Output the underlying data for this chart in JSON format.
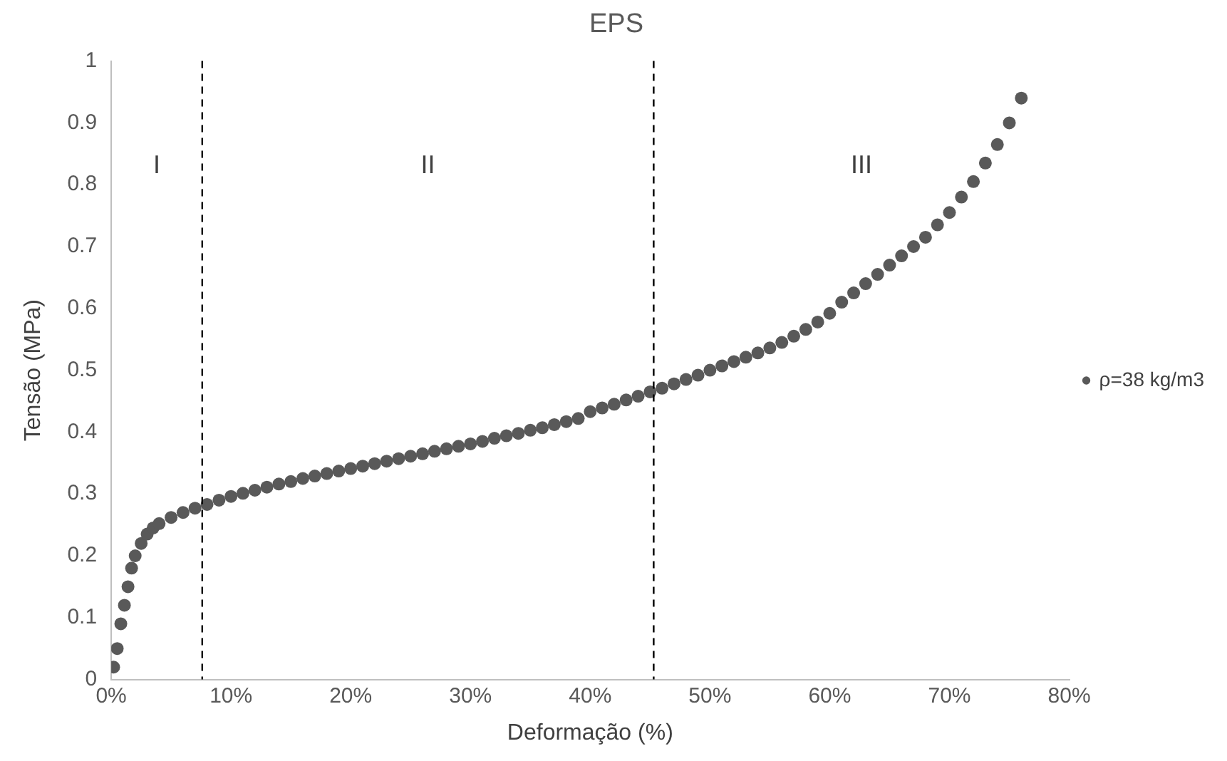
{
  "chart_data": {
    "type": "scatter",
    "title": "EPS",
    "xlabel": "Deformação (%)",
    "ylabel": "Tensão (MPa)",
    "xlim": [
      0,
      80
    ],
    "xticks": [
      {
        "value": 0,
        "label": "0%"
      },
      {
        "value": 10,
        "label": "10%"
      },
      {
        "value": 20,
        "label": "20%"
      },
      {
        "value": 30,
        "label": "30%"
      },
      {
        "value": 40,
        "label": "40%"
      },
      {
        "value": 50,
        "label": "50%"
      },
      {
        "value": 60,
        "label": "60%"
      },
      {
        "value": 70,
        "label": "70%"
      },
      {
        "value": 80,
        "label": "80%"
      }
    ],
    "ylim": [
      0,
      1
    ],
    "yticks": [
      0,
      0.1,
      0.2,
      0.3,
      0.4,
      0.5,
      0.6,
      0.7,
      0.8,
      0.9,
      1
    ],
    "grid": false,
    "legend": "right",
    "marker": "circle",
    "ref_lines": [
      {
        "axis": "x",
        "value": 7.6,
        "line_style": "dashed",
        "color": "#000000"
      },
      {
        "axis": "x",
        "value": 45.3,
        "line_style": "dashed",
        "color": "#000000"
      }
    ],
    "annotations": [
      "I",
      "II",
      "III"
    ],
    "series": [
      {
        "name": "ρ=38 kg/m3",
        "color": "#595959",
        "x": [
          0.2,
          0.5,
          0.8,
          1.1,
          1.4,
          1.7,
          2,
          2.5,
          3,
          3.5,
          4,
          5,
          6,
          7,
          8,
          9,
          10,
          11,
          12,
          13,
          14,
          15,
          16,
          17,
          18,
          19,
          20,
          21,
          22,
          23,
          24,
          25,
          26,
          27,
          28,
          29,
          30,
          31,
          32,
          33,
          34,
          35,
          36,
          37,
          38,
          39,
          40,
          41,
          42,
          43,
          44,
          45,
          46,
          47,
          48,
          49,
          50,
          51,
          52,
          53,
          54,
          55,
          56,
          57,
          58,
          59,
          60,
          61,
          62,
          63,
          64,
          65,
          66,
          67,
          68,
          69,
          70,
          71,
          72,
          73,
          74,
          75,
          76
        ],
        "values": [
          0.02,
          0.05,
          0.09,
          0.12,
          0.15,
          0.18,
          0.2,
          0.22,
          0.235,
          0.245,
          0.252,
          0.262,
          0.27,
          0.277,
          0.283,
          0.29,
          0.296,
          0.301,
          0.306,
          0.311,
          0.316,
          0.32,
          0.325,
          0.329,
          0.333,
          0.337,
          0.341,
          0.345,
          0.349,
          0.353,
          0.357,
          0.361,
          0.365,
          0.369,
          0.373,
          0.377,
          0.381,
          0.385,
          0.39,
          0.394,
          0.398,
          0.403,
          0.407,
          0.412,
          0.417,
          0.422,
          0.433,
          0.439,
          0.445,
          0.452,
          0.458,
          0.465,
          0.471,
          0.478,
          0.485,
          0.492,
          0.5,
          0.507,
          0.514,
          0.521,
          0.528,
          0.536,
          0.545,
          0.555,
          0.566,
          0.578,
          0.592,
          0.61,
          0.625,
          0.64,
          0.655,
          0.67,
          0.685,
          0.7,
          0.715,
          0.735,
          0.755,
          0.78,
          0.805,
          0.835,
          0.865,
          0.9,
          0.94
        ]
      }
    ]
  }
}
